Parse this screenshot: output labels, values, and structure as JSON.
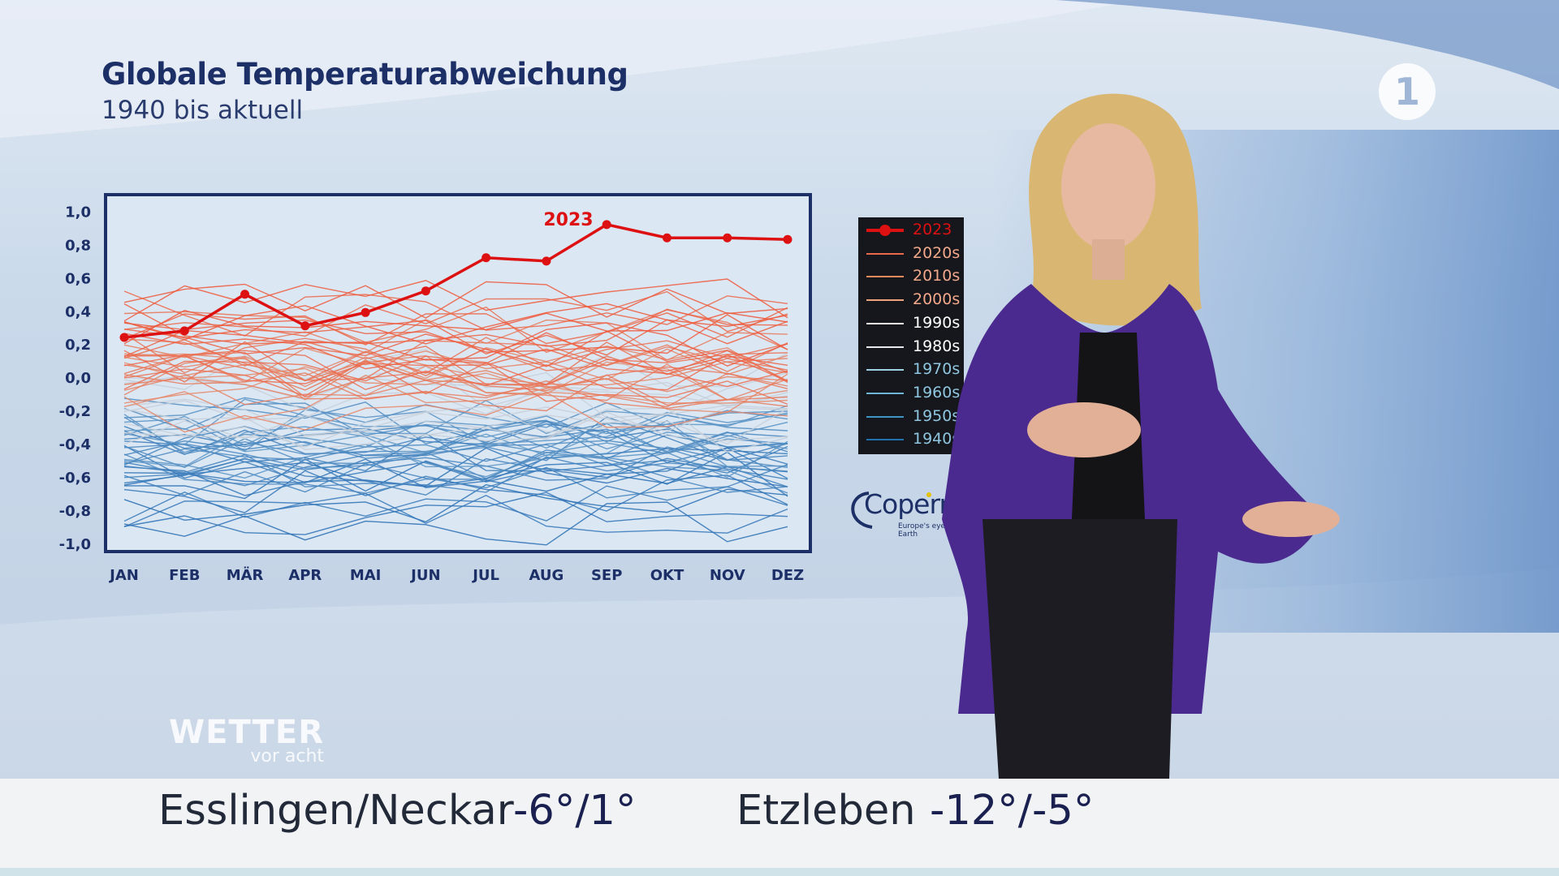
{
  "header": {
    "title": "Globale Temperaturabweichung",
    "subtitle": "1940 bis aktuell"
  },
  "colors": {
    "highlight": "#dd1111",
    "warm": "#e8653a",
    "cool": "#2b7fbf",
    "axis_text": "#1c2f66",
    "frame": "#1c2f66"
  },
  "chart_data": {
    "type": "line",
    "title": "Globale Temperaturabweichung",
    "subtitle": "1940 bis aktuell",
    "xlabel": "",
    "ylabel": "",
    "categories": [
      "JAN",
      "FEB",
      "MÄR",
      "APR",
      "MAI",
      "JUN",
      "JUL",
      "AUG",
      "SEP",
      "OKT",
      "NOV",
      "DEZ"
    ],
    "ylim": [
      -1.05,
      1.1
    ],
    "yticks": [
      "1,0",
      "0,8",
      "0,6",
      "0,4",
      "0,2",
      "0,0",
      "-0,2",
      "-0,4",
      "-0,6",
      "-0,8",
      "-1,0"
    ],
    "grid": false,
    "highlight_series": {
      "name": "2023",
      "label": "2023",
      "values": [
        0.24,
        0.28,
        0.5,
        0.31,
        0.39,
        0.52,
        0.72,
        0.7,
        0.92,
        0.84,
        0.84,
        0.83
      ]
    },
    "legend": {
      "position": "right",
      "entries": [
        {
          "label": "2023",
          "color": "#dd1111"
        },
        {
          "label": "2020s",
          "color": "#e86a4a"
        },
        {
          "label": "2010s",
          "color": "#ec8a5c"
        },
        {
          "label": "2000s",
          "color": "#f0a47a"
        },
        {
          "label": "1990s",
          "color": "#f2efea"
        },
        {
          "label": "1980s",
          "color": "#e6e8ec"
        },
        {
          "label": "1970s",
          "color": "#9ecfe3"
        },
        {
          "label": "1960s",
          "color": "#6fb5d8"
        },
        {
          "label": "1950s",
          "color": "#3f95c8"
        },
        {
          "label": "1940s",
          "color": "#2071b0"
        }
      ]
    }
  },
  "logos": {
    "channel": "1",
    "copernicus": "Copernicus",
    "copernicus_tagline": "Europe's eyes on Earth",
    "show_line1": "WETTER",
    "show_line2": "vor acht"
  },
  "ticker": {
    "city1": "Esslingen/Neckar",
    "temp1": "-6°/1°",
    "city2": "Etzleben",
    "temp2": "-12°/-5°"
  }
}
